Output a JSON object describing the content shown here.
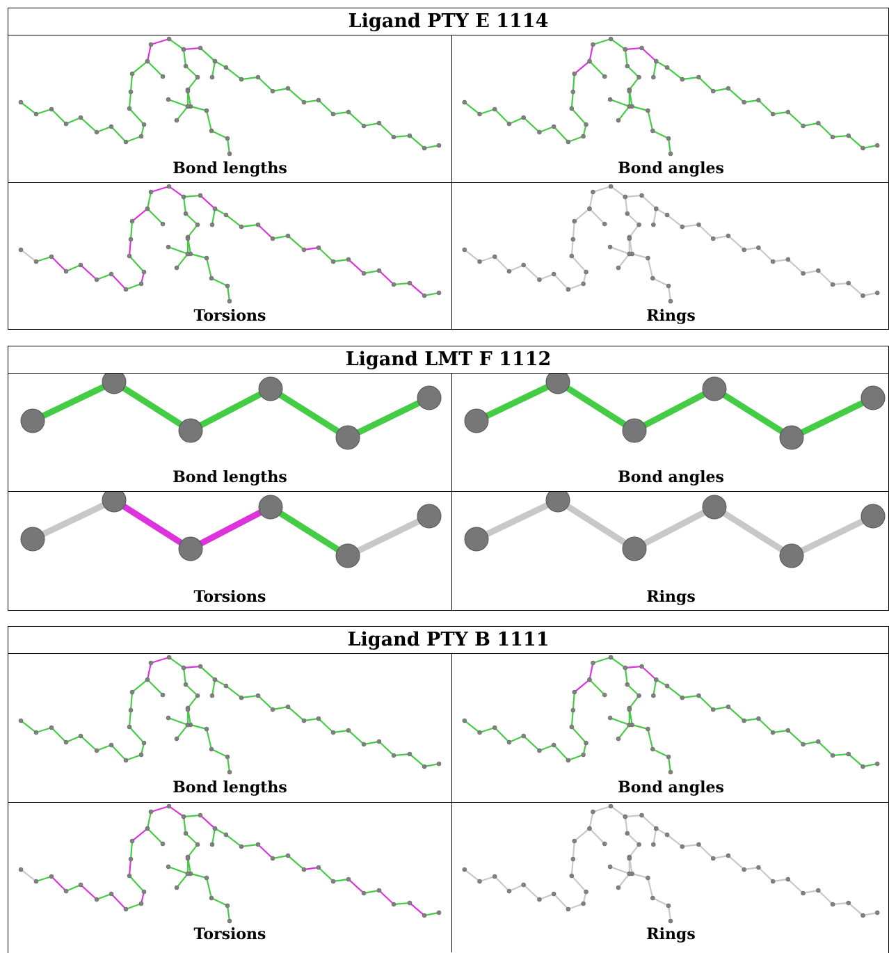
{
  "ligands": [
    {
      "title": "Ligand PTY E 1114",
      "panels": [
        {
          "caption": "Bond lengths",
          "style": "color-lengths"
        },
        {
          "caption": "Bond angles",
          "style": "color-angles"
        },
        {
          "caption": "Torsions",
          "style": "color-torsions"
        },
        {
          "caption": "Rings",
          "style": "gray"
        }
      ]
    },
    {
      "title": "Ligand LMT F 1112",
      "panels": [
        {
          "caption": "Bond lengths",
          "style": "all-green"
        },
        {
          "caption": "Bond angles",
          "style": "all-green"
        },
        {
          "caption": "Torsions",
          "style": "torsion-mix"
        },
        {
          "caption": "Rings",
          "style": "gray"
        }
      ]
    },
    {
      "title": "Ligand PTY B 1111",
      "panels": [
        {
          "caption": "Bond lengths",
          "style": "color-lengths"
        },
        {
          "caption": "Bond angles",
          "style": "color-angles"
        },
        {
          "caption": "Torsions",
          "style": "color-torsions"
        },
        {
          "caption": "Rings",
          "style": "gray"
        }
      ]
    }
  ],
  "colors": {
    "green": "#44cc44",
    "magenta": "#dd33dd",
    "gray_bond": "#c8c8c8",
    "atom": "#808080"
  }
}
